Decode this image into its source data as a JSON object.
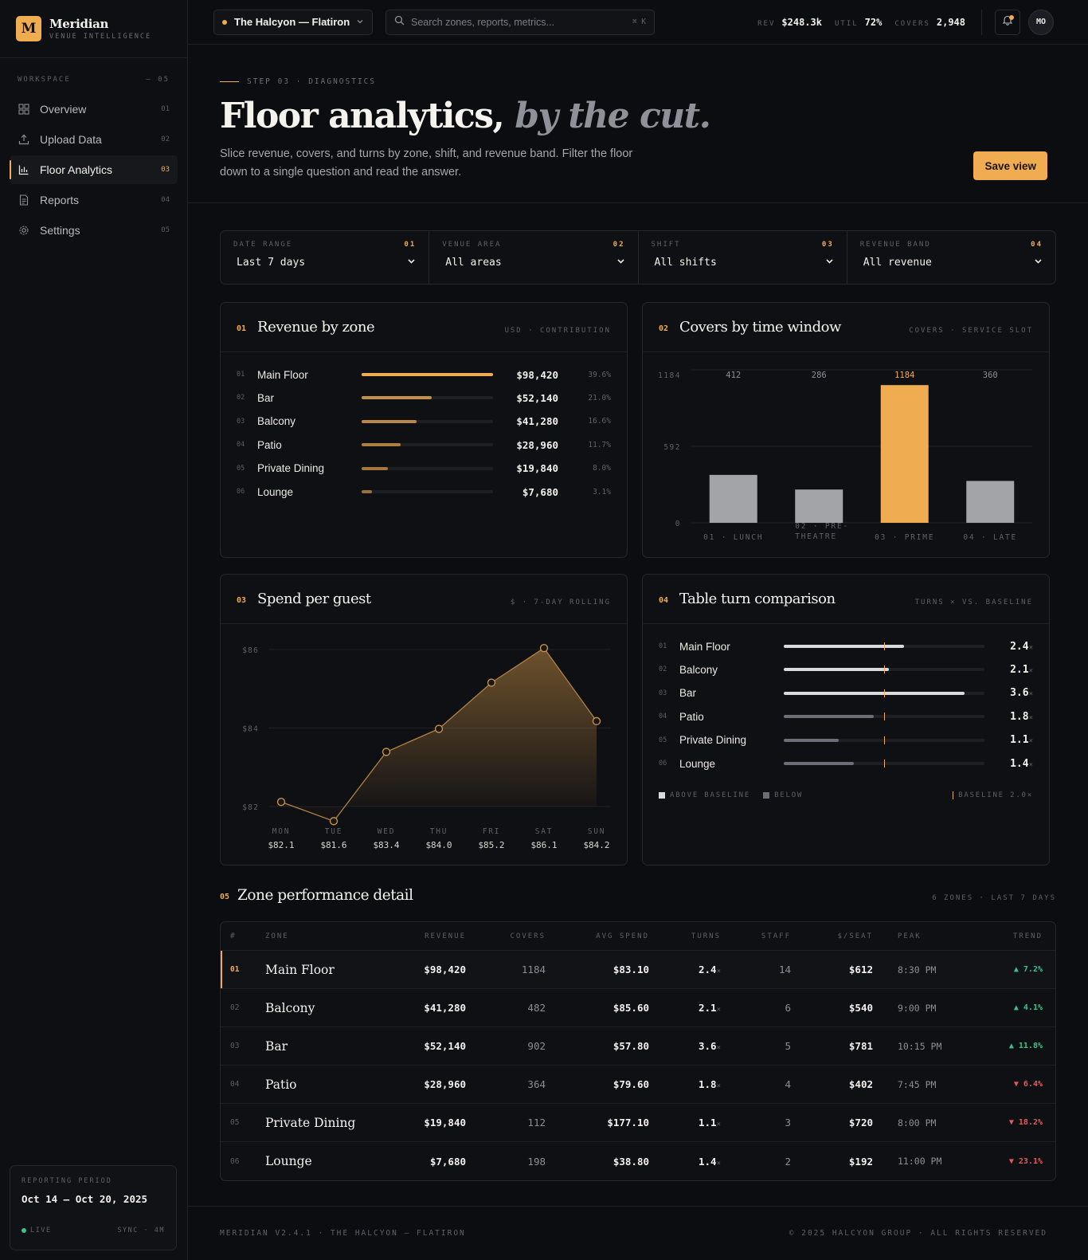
{
  "brand": {
    "logo_letter": "M",
    "name": "Meridian",
    "tagline": "VENUE INTELLIGENCE"
  },
  "sidebar": {
    "section_label": "WORKSPACE",
    "section_count": "— 05",
    "items": [
      {
        "label": "Overview",
        "num": "01",
        "icon": "grid-icon"
      },
      {
        "label": "Upload Data",
        "num": "02",
        "icon": "upload-icon"
      },
      {
        "label": "Floor Analytics",
        "num": "03",
        "icon": "bar-chart-icon",
        "active": true
      },
      {
        "label": "Reports",
        "num": "04",
        "icon": "document-icon"
      },
      {
        "label": "Settings",
        "num": "05",
        "icon": "gear-icon"
      }
    ],
    "period": {
      "label": "REPORTING PERIOD",
      "value": "Oct 14 – Oct 20, 2025",
      "status": "LIVE",
      "sync": "SYNC · 4M"
    }
  },
  "topbar": {
    "venue": "The Halcyon — Flatiron",
    "search_placeholder": "Search zones, reports, metrics...",
    "shortcut": "⌘ K",
    "metrics": [
      {
        "key": "REV",
        "value": "$248.3k"
      },
      {
        "key": "UTIL",
        "value": "72%"
      },
      {
        "key": "COVERS",
        "value": "2,948"
      }
    ],
    "avatar": "MO"
  },
  "hero": {
    "eyebrow": "STEP 03 · DIAGNOSTICS",
    "title_main": "Floor analytics,",
    "title_em": "by the cut.",
    "description": "Slice revenue, covers, and turns by zone, shift, and revenue band. Filter the floor down to a single question and read the answer.",
    "save_button": "Save view"
  },
  "filters": [
    {
      "label": "DATE RANGE",
      "num": "01",
      "value": "Last 7 days"
    },
    {
      "label": "VENUE AREA",
      "num": "02",
      "value": "All areas"
    },
    {
      "label": "SHIFT",
      "num": "03",
      "value": "All shifts"
    },
    {
      "label": "REVENUE BAND",
      "num": "04",
      "value": "All revenue"
    }
  ],
  "cards": {
    "revenue": {
      "num": "01",
      "title": "Revenue by zone",
      "sub": "USD · CONTRIBUTION"
    },
    "covers": {
      "num": "02",
      "title": "Covers by time window",
      "sub": "COVERS · SERVICE SLOT"
    },
    "spend": {
      "num": "03",
      "title": "Spend per guest",
      "sub": "$ · 7-DAY ROLLING"
    },
    "turns": {
      "num": "04",
      "title": "Table turn comparison",
      "sub": "TURNS × VS. BASELINE",
      "legend_above": "ABOVE BASELINE",
      "legend_below": "BELOW",
      "legend_baseline": "BASELINE 2.0×"
    }
  },
  "colors": {
    "accent": "#f0ac50",
    "muted_bar": "#a3a4a8",
    "up": "#39c48a",
    "down": "#e25b5b"
  },
  "revenue_by_zone": [
    {
      "idx": "01",
      "zone": "Main Floor",
      "value": "$98,420",
      "pct": "39.6%",
      "share": 39.6
    },
    {
      "idx": "02",
      "zone": "Bar",
      "value": "$52,140",
      "pct": "21.0%",
      "share": 21.0
    },
    {
      "idx": "03",
      "zone": "Balcony",
      "value": "$41,280",
      "pct": "16.6%",
      "share": 16.6
    },
    {
      "idx": "04",
      "zone": "Patio",
      "value": "$28,960",
      "pct": "11.7%",
      "share": 11.7
    },
    {
      "idx": "05",
      "zone": "Private Dining",
      "value": "$19,840",
      "pct": "8.0%",
      "share": 8.0
    },
    {
      "idx": "06",
      "zone": "Lounge",
      "value": "$7,680",
      "pct": "3.1%",
      "share": 3.1
    }
  ],
  "turns": [
    {
      "idx": "01",
      "zone": "Main Floor",
      "value": "2.4",
      "turns": 2.4
    },
    {
      "idx": "02",
      "zone": "Balcony",
      "value": "2.1",
      "turns": 2.1
    },
    {
      "idx": "03",
      "zone": "Bar",
      "value": "3.6",
      "turns": 3.6
    },
    {
      "idx": "04",
      "zone": "Patio",
      "value": "1.8",
      "turns": 1.8
    },
    {
      "idx": "05",
      "zone": "Private Dining",
      "value": "1.1",
      "turns": 1.1
    },
    {
      "idx": "06",
      "zone": "Lounge",
      "value": "1.4",
      "turns": 1.4
    }
  ],
  "chart_data": [
    {
      "type": "bar",
      "title": "Covers by time window",
      "categories": [
        "01 · LUNCH",
        "02 · PRE-THEATRE",
        "03 · PRIME",
        "04 · LATE"
      ],
      "values": [
        412,
        286,
        1184,
        360
      ],
      "highlight": "03 · PRIME",
      "ylim": [
        0,
        1184
      ],
      "yticks": [
        "1184",
        "592",
        "0"
      ]
    },
    {
      "type": "area",
      "title": "Spend per guest",
      "categories": [
        "MON",
        "TUE",
        "WED",
        "THU",
        "FRI",
        "SAT",
        "SUN"
      ],
      "values": [
        82.1,
        81.6,
        83.4,
        84.0,
        85.2,
        86.1,
        84.2
      ],
      "labels": [
        "$82.1",
        "$81.6",
        "$83.4",
        "$84.0",
        "$85.2",
        "$86.1",
        "$84.2"
      ],
      "ylim": [
        82,
        86
      ],
      "yticks": [
        "$86",
        "$84",
        "$82"
      ]
    }
  ],
  "table": {
    "num": "05",
    "title": "Zone performance detail",
    "meta": "6 ZONES · LAST 7 DAYS",
    "columns": [
      "#",
      "ZONE",
      "REVENUE",
      "COVERS",
      "AVG SPEND",
      "TURNS",
      "STAFF",
      "$/SEAT",
      "PEAK",
      "TREND"
    ],
    "rows": [
      {
        "idx": "01",
        "zone": "Main Floor",
        "revenue": "$98,420",
        "covers": "1184",
        "avg": "$83.10",
        "turns": "2.4",
        "staff": "14",
        "seat": "$612",
        "peak": "8:30 PM",
        "trend": "▲ 7.2%",
        "dir": "up"
      },
      {
        "idx": "02",
        "zone": "Balcony",
        "revenue": "$41,280",
        "covers": "482",
        "avg": "$85.60",
        "turns": "2.1",
        "staff": "6",
        "seat": "$540",
        "peak": "9:00 PM",
        "trend": "▲ 4.1%",
        "dir": "up"
      },
      {
        "idx": "03",
        "zone": "Bar",
        "revenue": "$52,140",
        "covers": "902",
        "avg": "$57.80",
        "turns": "3.6",
        "staff": "5",
        "seat": "$781",
        "peak": "10:15 PM",
        "trend": "▲ 11.8%",
        "dir": "up"
      },
      {
        "idx": "04",
        "zone": "Patio",
        "revenue": "$28,960",
        "covers": "364",
        "avg": "$79.60",
        "turns": "1.8",
        "staff": "4",
        "seat": "$402",
        "peak": "7:45 PM",
        "trend": "▼ 6.4%",
        "dir": "down"
      },
      {
        "idx": "05",
        "zone": "Private Dining",
        "revenue": "$19,840",
        "covers": "112",
        "avg": "$177.10",
        "turns": "1.1",
        "staff": "3",
        "seat": "$720",
        "peak": "8:00 PM",
        "trend": "▼ 18.2%",
        "dir": "down"
      },
      {
        "idx": "06",
        "zone": "Lounge",
        "revenue": "$7,680",
        "covers": "198",
        "avg": "$38.80",
        "turns": "1.4",
        "staff": "2",
        "seat": "$192",
        "peak": "11:00 PM",
        "trend": "▼ 23.1%",
        "dir": "down"
      }
    ]
  },
  "footer": {
    "left": "MERIDIAN V2.4.1 · THE HALCYON — FLATIRON",
    "right": "© 2025 HALCYON GROUP · ALL RIGHTS RESERVED"
  }
}
